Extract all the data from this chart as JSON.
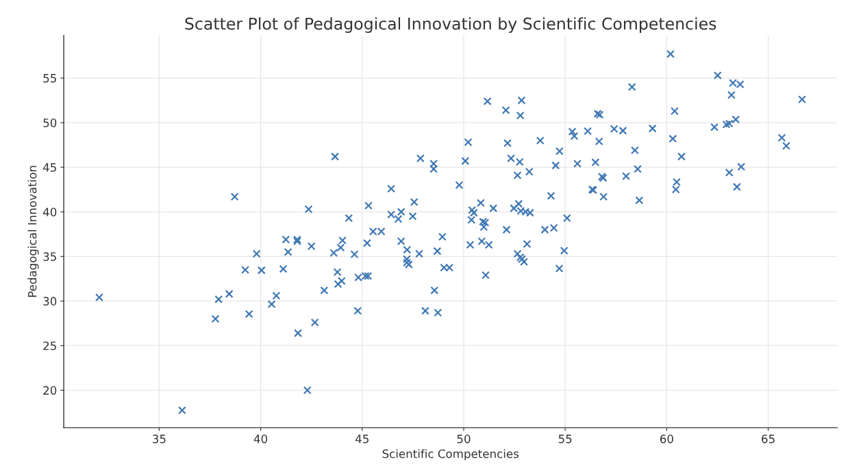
{
  "chart_data": {
    "type": "scatter",
    "title": "Scatter Plot of Pedagogical Innovation by Scientific Competencies",
    "xlabel": "Scientific Competencies",
    "ylabel": "Pedagogical Innovation",
    "x": [
      32.05,
      36.13,
      37.77,
      37.93,
      38.45,
      38.72,
      39.24,
      39.43,
      39.8,
      40.04,
      40.54,
      40.77,
      41.11,
      41.24,
      41.35,
      41.8,
      41.8,
      41.84,
      42.3,
      42.36,
      42.5,
      42.67,
      43.13,
      43.6,
      43.66,
      43.78,
      43.81,
      43.94,
      43.99,
      44.03,
      44.34,
      44.62,
      44.78,
      44.81,
      45.16,
      45.24,
      45.29,
      45.31,
      45.54,
      45.94,
      46.43,
      46.43,
      46.78,
      46.92,
      46.92,
      47.2,
      47.2,
      47.21,
      47.3,
      47.49,
      47.56,
      47.81,
      47.87,
      48.11,
      48.52,
      48.52,
      48.56,
      48.7,
      48.73,
      48.95,
      49.03,
      49.3,
      49.78,
      50.08,
      50.22,
      50.32,
      50.38,
      50.41,
      50.5,
      50.84,
      50.89,
      50.95,
      50.99,
      51.06,
      51.08,
      51.17,
      51.24,
      51.46,
      52.08,
      52.11,
      52.16,
      52.33,
      52.47,
      52.65,
      52.65,
      52.71,
      52.76,
      52.79,
      52.79,
      52.81,
      52.85,
      52.87,
      52.97,
      53.05,
      53.12,
      53.23,
      53.27,
      53.77,
      54.0,
      54.3,
      54.44,
      54.53,
      54.71,
      54.72,
      54.95,
      55.09,
      55.35,
      55.45,
      55.6,
      56.11,
      56.33,
      56.38,
      56.49,
      56.6,
      56.67,
      56.7,
      56.81,
      56.87,
      56.89,
      57.41,
      57.84,
      58.0,
      58.29,
      58.43,
      58.57,
      58.65,
      59.3,
      60.19,
      60.3,
      60.39,
      60.45,
      60.49,
      60.73,
      62.35,
      62.51,
      62.94,
      63.08,
      63.08,
      63.19,
      63.26,
      63.4,
      63.46,
      63.62,
      63.67,
      65.67,
      65.89,
      66.67
    ],
    "values": [
      30.4,
      17.75,
      28.0,
      30.2,
      30.8,
      41.7,
      33.5,
      28.55,
      35.3,
      33.45,
      29.65,
      30.6,
      33.6,
      36.9,
      35.5,
      36.9,
      36.7,
      26.4,
      20.0,
      40.3,
      36.15,
      27.6,
      31.2,
      35.4,
      46.2,
      33.25,
      31.9,
      36.0,
      32.25,
      36.8,
      39.3,
      35.25,
      28.9,
      32.65,
      32.8,
      36.5,
      32.8,
      40.7,
      37.8,
      37.8,
      42.6,
      39.7,
      39.2,
      40.0,
      36.7,
      34.7,
      34.3,
      35.75,
      34.1,
      39.5,
      41.1,
      35.3,
      46.0,
      28.9,
      45.4,
      44.8,
      31.2,
      35.6,
      28.7,
      37.2,
      33.75,
      33.75,
      43.0,
      45.7,
      47.8,
      36.3,
      39.1,
      40.2,
      39.9,
      41.0,
      36.7,
      38.9,
      38.3,
      38.8,
      32.9,
      52.4,
      36.3,
      40.4,
      51.4,
      38.0,
      47.7,
      46.0,
      40.4,
      44.1,
      35.3,
      40.9,
      45.6,
      50.8,
      34.9,
      40.1,
      52.5,
      34.7,
      34.4,
      40.0,
      36.4,
      44.5,
      39.9,
      48.0,
      38.0,
      41.8,
      38.2,
      45.2,
      33.65,
      46.8,
      35.65,
      39.3,
      49.0,
      48.5,
      45.4,
      49.05,
      42.5,
      42.45,
      45.55,
      51.0,
      47.9,
      50.9,
      43.95,
      43.8,
      41.7,
      49.3,
      49.1,
      44.0,
      54.0,
      46.9,
      44.8,
      41.3,
      49.35,
      57.7,
      48.2,
      51.3,
      42.5,
      43.35,
      46.2,
      49.5,
      55.3,
      49.8,
      49.9,
      44.4,
      53.1,
      54.45,
      50.35,
      42.8,
      54.3,
      45.05,
      48.3,
      47.4,
      52.6
    ],
    "color": "#3f78b4",
    "marker": "cross",
    "grid": true,
    "xlim": [
      30.3,
      68.4
    ],
    "ylim": [
      15.8,
      59.8
    ],
    "xticks": [
      35,
      40,
      45,
      50,
      55,
      60,
      65
    ],
    "yticks": [
      20,
      25,
      30,
      35,
      40,
      45,
      50,
      55
    ]
  }
}
